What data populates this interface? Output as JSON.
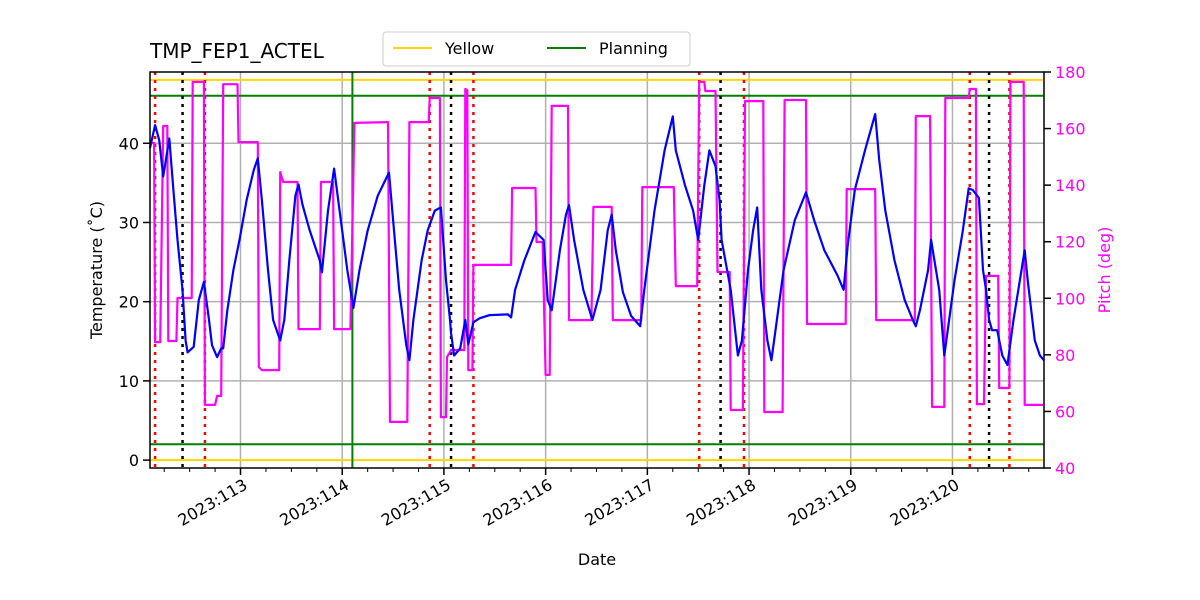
{
  "chart_data": {
    "type": "line",
    "title": "TMP_FEP1_ACTEL",
    "xlabel": "Date",
    "ylabel": "Temperature ($^\\circ$C)",
    "ylabel_display": "Temperature (˚C)",
    "y2label": "Pitch (deg)",
    "xlim": [
      112.11,
      120.9
    ],
    "ylim": [
      -1,
      49
    ],
    "y2lim": [
      40,
      180
    ],
    "x_ticks": [
      113,
      114,
      115,
      116,
      117,
      118,
      119,
      120
    ],
    "x_tick_labels": [
      "2023:113",
      "2023:114",
      "2023:115",
      "2023:116",
      "2023:117",
      "2023:118",
      "2023:119",
      "2023:120"
    ],
    "y_ticks": [
      0,
      10,
      20,
      30,
      40
    ],
    "y2_ticks": [
      40,
      60,
      80,
      100,
      120,
      140,
      160,
      180
    ],
    "grid": true,
    "legend": {
      "placement": "top-center",
      "entries": [
        {
          "label": "Yellow",
          "color": "#ffd700"
        },
        {
          "label": "Planning",
          "color": "#008000"
        }
      ]
    },
    "hlines": [
      {
        "name": "Yellow",
        "values": [
          0,
          48
        ],
        "color": "#ffd700"
      },
      {
        "name": "Planning",
        "values": [
          2,
          46
        ],
        "color": "#008000"
      }
    ],
    "vline_green": {
      "x": 114.1,
      "color": "#008000"
    },
    "vlines_red_dotted": [
      112.16,
      112.65,
      114.86,
      115.29,
      117.51,
      117.95,
      120.17,
      120.56
    ],
    "vlines_black_dotted": [
      112.43,
      115.07,
      117.72,
      120.36
    ],
    "series": [
      {
        "axis": "left",
        "color": "#0000ff",
        "points": [
          [
            112.11,
            39.4
          ],
          [
            112.16,
            42.3
          ],
          [
            112.2,
            40.4
          ],
          [
            112.24,
            35.8
          ],
          [
            112.3,
            40.6
          ],
          [
            112.34,
            34.1
          ],
          [
            112.38,
            27.8
          ],
          [
            112.43,
            21.5
          ],
          [
            112.46,
            15.1
          ],
          [
            112.48,
            13.6
          ],
          [
            112.54,
            14.3
          ],
          [
            112.59,
            20.2
          ],
          [
            112.64,
            22.5
          ],
          [
            112.69,
            17.7
          ],
          [
            112.72,
            14.5
          ],
          [
            112.77,
            13.0
          ],
          [
            112.81,
            14.1
          ],
          [
            112.83,
            14.1
          ],
          [
            112.87,
            18.9
          ],
          [
            112.93,
            24.0
          ],
          [
            112.99,
            27.8
          ],
          [
            113.06,
            32.8
          ],
          [
            113.13,
            36.6
          ],
          [
            113.17,
            38.1
          ],
          [
            113.21,
            32.8
          ],
          [
            113.27,
            24.0
          ],
          [
            113.32,
            17.7
          ],
          [
            113.39,
            15.1
          ],
          [
            113.43,
            17.7
          ],
          [
            113.48,
            25.2
          ],
          [
            113.54,
            33.4
          ],
          [
            113.57,
            34.8
          ],
          [
            113.61,
            32.2
          ],
          [
            113.68,
            29.0
          ],
          [
            113.78,
            25.2
          ],
          [
            113.8,
            23.7
          ],
          [
            113.86,
            31.5
          ],
          [
            113.92,
            36.8
          ],
          [
            113.98,
            30.9
          ],
          [
            114.05,
            24.0
          ],
          [
            114.11,
            19.2
          ],
          [
            114.17,
            24.0
          ],
          [
            114.25,
            29.0
          ],
          [
            114.35,
            33.4
          ],
          [
            114.46,
            36.3
          ],
          [
            114.5,
            30.3
          ],
          [
            114.56,
            21.5
          ],
          [
            114.63,
            14.5
          ],
          [
            114.66,
            12.6
          ],
          [
            114.7,
            17.7
          ],
          [
            114.78,
            25.2
          ],
          [
            114.84,
            29.0
          ],
          [
            114.91,
            31.5
          ],
          [
            114.97,
            31.9
          ],
          [
            115.02,
            22.7
          ],
          [
            115.06,
            17.7
          ],
          [
            115.07,
            16.0
          ],
          [
            115.1,
            13.2
          ],
          [
            115.16,
            14.1
          ],
          [
            115.21,
            17.7
          ],
          [
            115.24,
            14.6
          ],
          [
            115.29,
            17.4
          ],
          [
            115.35,
            17.9
          ],
          [
            115.45,
            18.3
          ],
          [
            115.63,
            18.4
          ],
          [
            115.66,
            18.0
          ],
          [
            115.7,
            21.5
          ],
          [
            115.79,
            25.2
          ],
          [
            115.9,
            28.8
          ],
          [
            115.98,
            27.8
          ],
          [
            116.02,
            20.2
          ],
          [
            116.06,
            18.9
          ],
          [
            116.14,
            26.5
          ],
          [
            116.2,
            31.0
          ],
          [
            116.23,
            32.2
          ],
          [
            116.28,
            27.8
          ],
          [
            116.37,
            21.5
          ],
          [
            116.46,
            17.7
          ],
          [
            116.54,
            21.5
          ],
          [
            116.61,
            29.0
          ],
          [
            116.65,
            31.0
          ],
          [
            116.69,
            26.5
          ],
          [
            116.76,
            21.2
          ],
          [
            116.84,
            18.2
          ],
          [
            116.93,
            16.9
          ],
          [
            116.97,
            21.5
          ],
          [
            117.07,
            31.5
          ],
          [
            117.17,
            39.1
          ],
          [
            117.25,
            43.4
          ],
          [
            117.28,
            39.1
          ],
          [
            117.37,
            34.7
          ],
          [
            117.45,
            31.5
          ],
          [
            117.5,
            27.8
          ],
          [
            117.56,
            34.7
          ],
          [
            117.61,
            39.1
          ],
          [
            117.67,
            37.1
          ],
          [
            117.71,
            32.8
          ],
          [
            117.73,
            27.8
          ],
          [
            117.82,
            21.5
          ],
          [
            117.89,
            13.2
          ],
          [
            117.93,
            15.1
          ],
          [
            117.99,
            24.0
          ],
          [
            118.04,
            29.0
          ],
          [
            118.08,
            31.9
          ],
          [
            118.12,
            21.5
          ],
          [
            118.18,
            15.1
          ],
          [
            118.22,
            12.6
          ],
          [
            118.26,
            16.4
          ],
          [
            118.34,
            24.0
          ],
          [
            118.45,
            30.3
          ],
          [
            118.56,
            33.8
          ],
          [
            118.64,
            30.3
          ],
          [
            118.74,
            26.5
          ],
          [
            118.87,
            23.3
          ],
          [
            118.93,
            21.5
          ],
          [
            118.97,
            27.1
          ],
          [
            119.04,
            34.1
          ],
          [
            119.14,
            39.1
          ],
          [
            119.21,
            42.3
          ],
          [
            119.24,
            43.7
          ],
          [
            119.28,
            37.9
          ],
          [
            119.34,
            31.5
          ],
          [
            119.43,
            25.2
          ],
          [
            119.53,
            20.2
          ],
          [
            119.61,
            17.7
          ],
          [
            119.64,
            16.9
          ],
          [
            119.68,
            18.9
          ],
          [
            119.76,
            24.0
          ],
          [
            119.79,
            27.8
          ],
          [
            119.87,
            21.5
          ],
          [
            119.92,
            13.2
          ],
          [
            120.02,
            22.7
          ],
          [
            120.1,
            28.8
          ],
          [
            120.16,
            34.3
          ],
          [
            120.2,
            34.1
          ],
          [
            120.26,
            33.1
          ],
          [
            120.3,
            24.0
          ],
          [
            120.33,
            21.5
          ],
          [
            120.36,
            17.7
          ],
          [
            120.39,
            16.4
          ],
          [
            120.44,
            16.4
          ],
          [
            120.49,
            13.2
          ],
          [
            120.54,
            12.0
          ],
          [
            120.6,
            17.7
          ],
          [
            120.71,
            26.5
          ],
          [
            120.74,
            22.7
          ],
          [
            120.81,
            15.1
          ],
          [
            120.86,
            13.2
          ],
          [
            120.9,
            12.6
          ]
        ]
      },
      {
        "axis": "right",
        "color": "#ff00ff",
        "points": [
          [
            112.11,
            154.9
          ],
          [
            112.15,
            154.9
          ],
          [
            112.16,
            84.5
          ],
          [
            112.21,
            84.5
          ],
          [
            112.24,
            160.9
          ],
          [
            112.28,
            160.9
          ],
          [
            112.29,
            84.9
          ],
          [
            112.37,
            84.9
          ],
          [
            112.38,
            100.1
          ],
          [
            112.52,
            100.1
          ],
          [
            112.53,
            176.5
          ],
          [
            112.64,
            176.5
          ],
          [
            112.65,
            62.3
          ],
          [
            112.75,
            62.3
          ],
          [
            112.77,
            65.5
          ],
          [
            112.81,
            65.5
          ],
          [
            112.83,
            175.7
          ],
          [
            112.97,
            175.7
          ],
          [
            112.98,
            155.2
          ],
          [
            113.17,
            155.2
          ],
          [
            113.18,
            75.7
          ],
          [
            113.21,
            74.6
          ],
          [
            113.38,
            74.6
          ],
          [
            113.39,
            144.6
          ],
          [
            113.42,
            141.1
          ],
          [
            113.56,
            141.1
          ],
          [
            113.57,
            89.1
          ],
          [
            113.78,
            89.1
          ],
          [
            113.79,
            141.1
          ],
          [
            113.91,
            141.1
          ],
          [
            113.92,
            89.1
          ],
          [
            114.08,
            89.1
          ],
          [
            114.12,
            162.0
          ],
          [
            114.45,
            162.3
          ],
          [
            114.47,
            56.3
          ],
          [
            114.64,
            56.3
          ],
          [
            114.66,
            162.3
          ],
          [
            114.85,
            162.3
          ],
          [
            114.86,
            170.8
          ],
          [
            114.96,
            170.8
          ],
          [
            114.97,
            58.0
          ],
          [
            115.02,
            58.0
          ],
          [
            115.03,
            79.2
          ],
          [
            115.07,
            81.7
          ],
          [
            115.2,
            81.7
          ],
          [
            115.21,
            174.0
          ],
          [
            115.23,
            173.6
          ],
          [
            115.24,
            74.6
          ],
          [
            115.28,
            74.6
          ],
          [
            115.29,
            111.8
          ],
          [
            115.66,
            111.8
          ],
          [
            115.67,
            139.0
          ],
          [
            115.9,
            139.0
          ],
          [
            115.91,
            119.9
          ],
          [
            115.97,
            119.9
          ],
          [
            116.0,
            72.9
          ],
          [
            116.04,
            72.9
          ],
          [
            116.06,
            168.0
          ],
          [
            116.22,
            168.0
          ],
          [
            116.23,
            92.3
          ],
          [
            116.45,
            92.3
          ],
          [
            116.47,
            132.3
          ],
          [
            116.65,
            132.3
          ],
          [
            116.66,
            92.3
          ],
          [
            116.94,
            92.3
          ],
          [
            116.95,
            139.3
          ],
          [
            117.26,
            139.3
          ],
          [
            117.28,
            104.3
          ],
          [
            117.49,
            104.3
          ],
          [
            117.51,
            176.5
          ],
          [
            117.56,
            176.5
          ],
          [
            117.57,
            173.3
          ],
          [
            117.67,
            173.3
          ],
          [
            117.69,
            109.3
          ],
          [
            117.81,
            109.3
          ],
          [
            117.82,
            60.5
          ],
          [
            117.94,
            60.5
          ],
          [
            117.96,
            169.7
          ],
          [
            118.14,
            169.7
          ],
          [
            118.15,
            59.8
          ],
          [
            118.33,
            59.8
          ],
          [
            118.35,
            170.1
          ],
          [
            118.56,
            170.1
          ],
          [
            118.57,
            90.9
          ],
          [
            118.95,
            90.9
          ],
          [
            118.96,
            138.6
          ],
          [
            119.24,
            138.6
          ],
          [
            119.25,
            92.3
          ],
          [
            119.63,
            92.3
          ],
          [
            119.64,
            164.4
          ],
          [
            119.78,
            164.4
          ],
          [
            119.8,
            61.6
          ],
          [
            119.92,
            61.6
          ],
          [
            119.93,
            170.8
          ],
          [
            120.16,
            170.8
          ],
          [
            120.17,
            174.0
          ],
          [
            120.23,
            174.0
          ],
          [
            120.24,
            62.6
          ],
          [
            120.31,
            62.6
          ],
          [
            120.33,
            107.9
          ],
          [
            120.45,
            107.9
          ],
          [
            120.46,
            68.3
          ],
          [
            120.56,
            68.3
          ],
          [
            120.57,
            176.5
          ],
          [
            120.7,
            176.5
          ],
          [
            120.71,
            62.3
          ],
          [
            120.9,
            62.3
          ]
        ]
      }
    ]
  }
}
